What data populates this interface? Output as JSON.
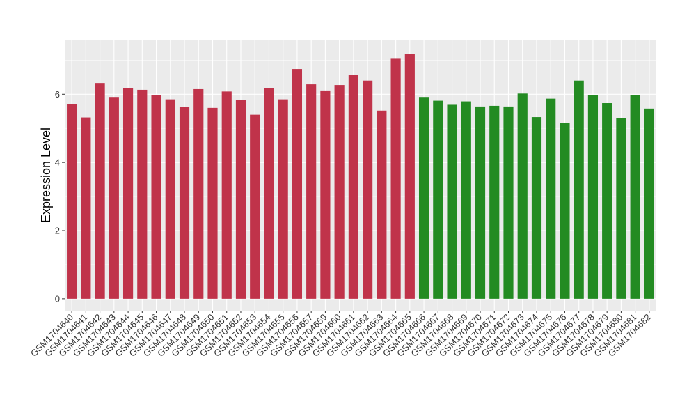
{
  "chart_data": {
    "type": "bar",
    "title": "",
    "xlabel": "",
    "ylabel": "Expression Level",
    "ylim": [
      -0.35,
      7.6
    ],
    "yticks": [
      0,
      2,
      4,
      6
    ],
    "ytick_labels": [
      "0",
      "2",
      "4",
      "6"
    ],
    "grid": true,
    "legend": "none",
    "colors": {
      "group1": "#C0334A",
      "group2": "#238B22",
      "panel": "#EBEBEB",
      "gridline": "#FFFFFF"
    },
    "categories": [
      "GSM1704640",
      "GSM1704641",
      "GSM1704642",
      "GSM1704643",
      "GSM1704644",
      "GSM1704645",
      "GSM1704646",
      "GSM1704647",
      "GSM1704648",
      "GSM1704649",
      "GSM1704650",
      "GSM1704651",
      "GSM1704652",
      "GSM1704653",
      "GSM1704654",
      "GSM1704655",
      "GSM1704656",
      "GSM1704657",
      "GSM1704659",
      "GSM1704660",
      "GSM1704661",
      "GSM1704662",
      "GSM1704663",
      "GSM1704664",
      "GSM1704665",
      "GSM1704666",
      "GSM1704667",
      "GSM1704668",
      "GSM1704669",
      "GSM1704670",
      "GSM1704671",
      "GSM1704672",
      "GSM1704673",
      "GSM1704674",
      "GSM1704675",
      "GSM1704676",
      "GSM1704677",
      "GSM1704678",
      "GSM1704679",
      "GSM1704680",
      "GSM1704681",
      "GSM1704682"
    ],
    "values": [
      5.7,
      5.32,
      6.33,
      5.92,
      6.17,
      6.13,
      5.98,
      5.85,
      5.62,
      6.15,
      5.6,
      6.08,
      5.83,
      5.4,
      6.17,
      5.85,
      6.74,
      6.29,
      6.11,
      6.27,
      6.56,
      6.4,
      5.52,
      7.06,
      7.18,
      5.92,
      5.81,
      5.69,
      5.79,
      5.64,
      5.66,
      5.64,
      6.02,
      5.33,
      5.87,
      5.15,
      6.4,
      5.98,
      5.74,
      5.3,
      5.98,
      5.58
    ],
    "groups": [
      1,
      1,
      1,
      1,
      1,
      1,
      1,
      1,
      1,
      1,
      1,
      1,
      1,
      1,
      1,
      1,
      1,
      1,
      1,
      1,
      1,
      1,
      1,
      1,
      1,
      2,
      2,
      2,
      2,
      2,
      2,
      2,
      2,
      2,
      2,
      2,
      2,
      2,
      2,
      2,
      2,
      2
    ]
  }
}
